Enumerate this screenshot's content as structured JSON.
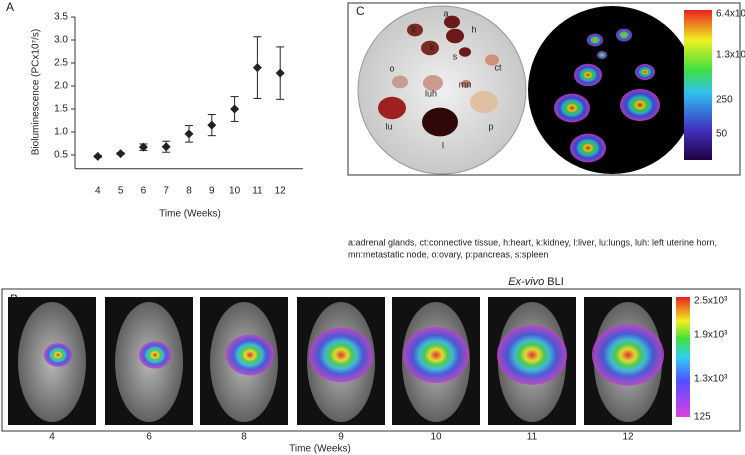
{
  "chart_data": {
    "type": "errorbar",
    "panel_label": "A",
    "x_label": "Time (Weeks)",
    "y_label": "Bioluminescence (PCx10⁷/s)",
    "x": [
      4,
      5,
      6,
      7,
      8,
      9,
      10,
      11,
      12
    ],
    "values": [
      0.47,
      0.53,
      0.67,
      0.68,
      0.96,
      1.15,
      1.5,
      2.4,
      2.28
    ],
    "errors": [
      0.02,
      0.02,
      0.07,
      0.12,
      0.18,
      0.23,
      0.27,
      0.67,
      0.57
    ],
    "color": "#222222",
    "xlim": [
      3,
      13
    ],
    "xticks": [
      4,
      5,
      6,
      7,
      8,
      9,
      10,
      11,
      12
    ],
    "ylim": [
      0.2,
      3.5
    ],
    "yticks": [
      {
        "value": 0.5,
        "label": "0.5"
      },
      {
        "value": 1,
        "label": "1.0"
      },
      {
        "value": 1.5,
        "label": "1.5"
      },
      {
        "value": 2,
        "label": "2.0"
      },
      {
        "value": 2.5,
        "label": "2.5"
      },
      {
        "value": 3,
        "label": "3.0"
      },
      {
        "value": 3.5,
        "label": "3.5"
      }
    ]
  },
  "panel_b": {
    "panel_label": "B",
    "weeks": [
      "4",
      "6",
      "8",
      "9",
      "10",
      "11",
      "12"
    ],
    "x_label": "Time (Weeks)",
    "colorbar": [
      "2.5x10³",
      "1.9x10³",
      "1.3x10³",
      "125"
    ]
  },
  "panel_c": {
    "panel_label": "C",
    "organs": [
      "a",
      "k",
      "h",
      "k",
      "s",
      "o",
      "luh",
      "ct",
      "mn",
      "lu",
      "l",
      "p"
    ],
    "colorbar": [
      "6.4x10³",
      "1.3x10³",
      "250",
      "50"
    ],
    "caption": [
      "a:adrenal glands, ct:connective tissue, h:heart, k:kidney, l:liver, lu:lungs, luh: left uterine horn,",
      "mn:metastatic node, o:ovary, p:pancreas, s:spleen"
    ],
    "subtitle": {
      "italic": "Ex-vivo",
      "text": "BLI"
    }
  }
}
